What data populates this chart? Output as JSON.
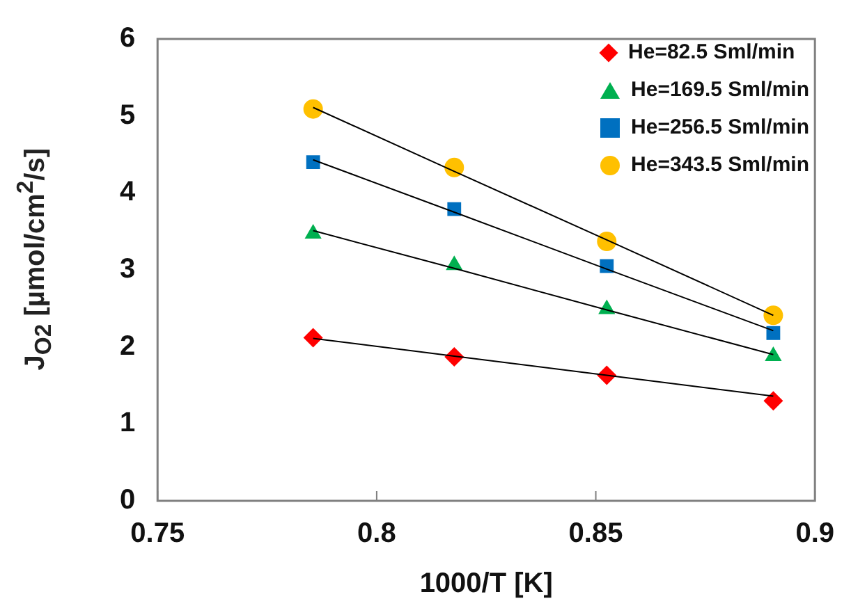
{
  "chart_data": {
    "type": "scatter",
    "xlabel": "1000/T [K]",
    "ylabel": "J$_{O2}$ [µmol/cm$^{2}$/s]",
    "xlim": [
      0.75,
      0.9
    ],
    "xticks": [
      0.75,
      0.8,
      0.85,
      0.9
    ],
    "ylim": [
      0,
      6
    ],
    "yticks": [
      0,
      1,
      2,
      3,
      4,
      5,
      6
    ],
    "grid": false,
    "legend": "top right",
    "x": [
      0.7855,
      0.8177,
      0.8525,
      0.8905
    ],
    "series": [
      {
        "name": "He=82.5 Sml/min",
        "color": "#ff0000",
        "marker": "diamond",
        "values": [
          2.12,
          1.87,
          1.63,
          1.3
        ]
      },
      {
        "name": "He=169.5 Sml/min",
        "color": "#00b050",
        "marker": "triangle",
        "values": [
          3.47,
          3.06,
          2.49,
          1.88
        ]
      },
      {
        "name": "He=256.5 Sml/min",
        "color": "#0070c0",
        "marker": "square",
        "values": [
          4.4,
          3.79,
          3.05,
          2.18
        ]
      },
      {
        "name": "He=343.5 Sml/min",
        "color": "#ffc000",
        "marker": "circle",
        "values": [
          5.09,
          4.33,
          3.37,
          2.41
        ]
      },
      {
        "type": "line",
        "color": "#000000",
        "marker": "none",
        "values": [
          2.11,
          1.88,
          1.63,
          1.36
        ]
      },
      {
        "type": "line",
        "color": "#000000",
        "marker": "none",
        "values": [
          3.51,
          3.02,
          2.48,
          1.9
        ]
      },
      {
        "type": "line",
        "color": "#000000",
        "marker": "none",
        "values": [
          4.43,
          3.75,
          3.01,
          2.21
        ]
      },
      {
        "type": "line",
        "color": "#000000",
        "marker": "none",
        "values": [
          5.11,
          4.28,
          3.39,
          2.41
        ]
      }
    ]
  }
}
